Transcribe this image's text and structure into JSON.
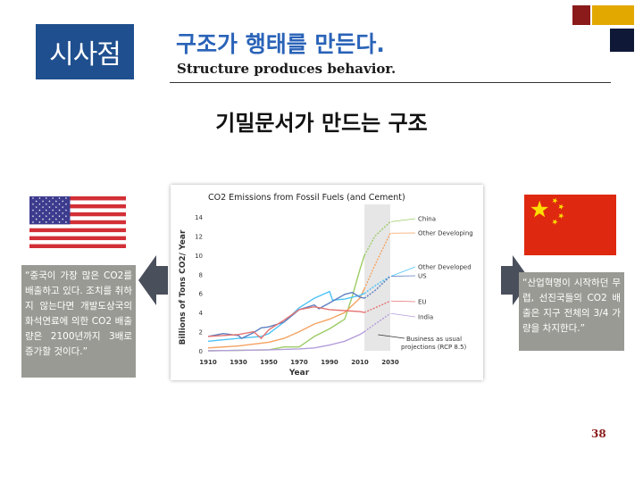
{
  "header": {
    "badge": "시사점",
    "title": "구조가 행태를 만든다.",
    "subtitle_en": "Structure produces behavior."
  },
  "main": {
    "heading": "기밀문서가 만드는 구조",
    "quote_left": "“중국이 가장 많은 CO2를 배출하고 있다. 조치를 취하지 않는다면 개발도상국의 화석연료에 의한 CO2 배출량은 2100년까지 3배로 증가할 것이다.”",
    "quote_right": "“산업혁명이 시작하던 무렵, 선진국들의 CO2 배출은 지구 전체의 3/4 가량을 차지한다.”"
  },
  "colors": {
    "badge_bg": "#1f4f8f",
    "title": "#2a63b8",
    "quote_bg": "#9a9a94"
  },
  "chart_data": {
    "type": "line",
    "title": "CO2 Emissions from Fossil Fuels (and Cement)",
    "xlabel": "Year",
    "ylabel": "Billions of Tons CO2/ Year",
    "xlim": [
      1910,
      2030
    ],
    "ylim": [
      0,
      14
    ],
    "x_ticks": [
      "1910",
      "1930",
      "1950",
      "1970",
      "1990",
      "2010",
      "2030"
    ],
    "y_ticks": [
      "0",
      "2",
      "4",
      "6",
      "8",
      "10",
      "12",
      "14"
    ],
    "annotation": "Business as usual projections (RCP 8.5)",
    "projection_start": 2013,
    "series": [
      {
        "name": "China",
        "color": "#9ccc65",
        "x": [
          1910,
          1930,
          1950,
          1960,
          1970,
          1980,
          1990,
          2000,
          2005,
          2010,
          2013,
          2020,
          2030
        ],
        "y": [
          0.0,
          0.05,
          0.1,
          0.4,
          0.4,
          1.5,
          2.3,
          3.3,
          5.7,
          8.5,
          10.0,
          12.0,
          13.5
        ]
      },
      {
        "name": "Other Developing",
        "color": "#f4a261",
        "x": [
          1910,
          1930,
          1950,
          1960,
          1970,
          1980,
          1990,
          2000,
          2010,
          2013,
          2020,
          2030
        ],
        "y": [
          0.3,
          0.5,
          0.9,
          1.3,
          2.0,
          2.8,
          3.3,
          4.0,
          5.5,
          6.5,
          9.0,
          12.3
        ]
      },
      {
        "name": "Other Developed",
        "color": "#4fc3f7",
        "x": [
          1910,
          1930,
          1945,
          1950,
          1960,
          1970,
          1980,
          1990,
          1992,
          2000,
          2010,
          2013,
          2020,
          2030
        ],
        "y": [
          1.0,
          1.3,
          1.5,
          1.8,
          3.0,
          4.5,
          5.5,
          6.2,
          5.3,
          5.4,
          5.8,
          6.0,
          6.8,
          7.8
        ]
      },
      {
        "name": "US",
        "color": "#5c7fc0",
        "x": [
          1910,
          1920,
          1930,
          1932,
          1940,
          1945,
          1950,
          1960,
          1970,
          1980,
          1983,
          1990,
          2000,
          2005,
          2010,
          2013,
          2020,
          2030
        ],
        "y": [
          1.5,
          1.8,
          1.6,
          1.3,
          1.9,
          2.4,
          2.5,
          3.0,
          4.3,
          4.8,
          4.4,
          5.0,
          5.9,
          6.1,
          5.6,
          5.5,
          6.3,
          7.8
        ]
      },
      {
        "name": "EU",
        "color": "#e57373",
        "x": [
          1910,
          1930,
          1940,
          1945,
          1950,
          1960,
          1970,
          1980,
          1990,
          2000,
          2010,
          2013,
          2030
        ],
        "y": [
          1.5,
          1.7,
          2.0,
          1.3,
          2.2,
          3.2,
          4.3,
          4.6,
          4.3,
          4.2,
          4.1,
          4.0,
          5.2
        ]
      },
      {
        "name": "India",
        "color": "#b39ddb",
        "x": [
          1910,
          1950,
          1970,
          1980,
          1990,
          2000,
          2010,
          2013,
          2020,
          2030
        ],
        "y": [
          0.0,
          0.1,
          0.2,
          0.3,
          0.6,
          1.0,
          1.7,
          2.0,
          2.8,
          3.9
        ]
      }
    ]
  },
  "page_number": "38"
}
